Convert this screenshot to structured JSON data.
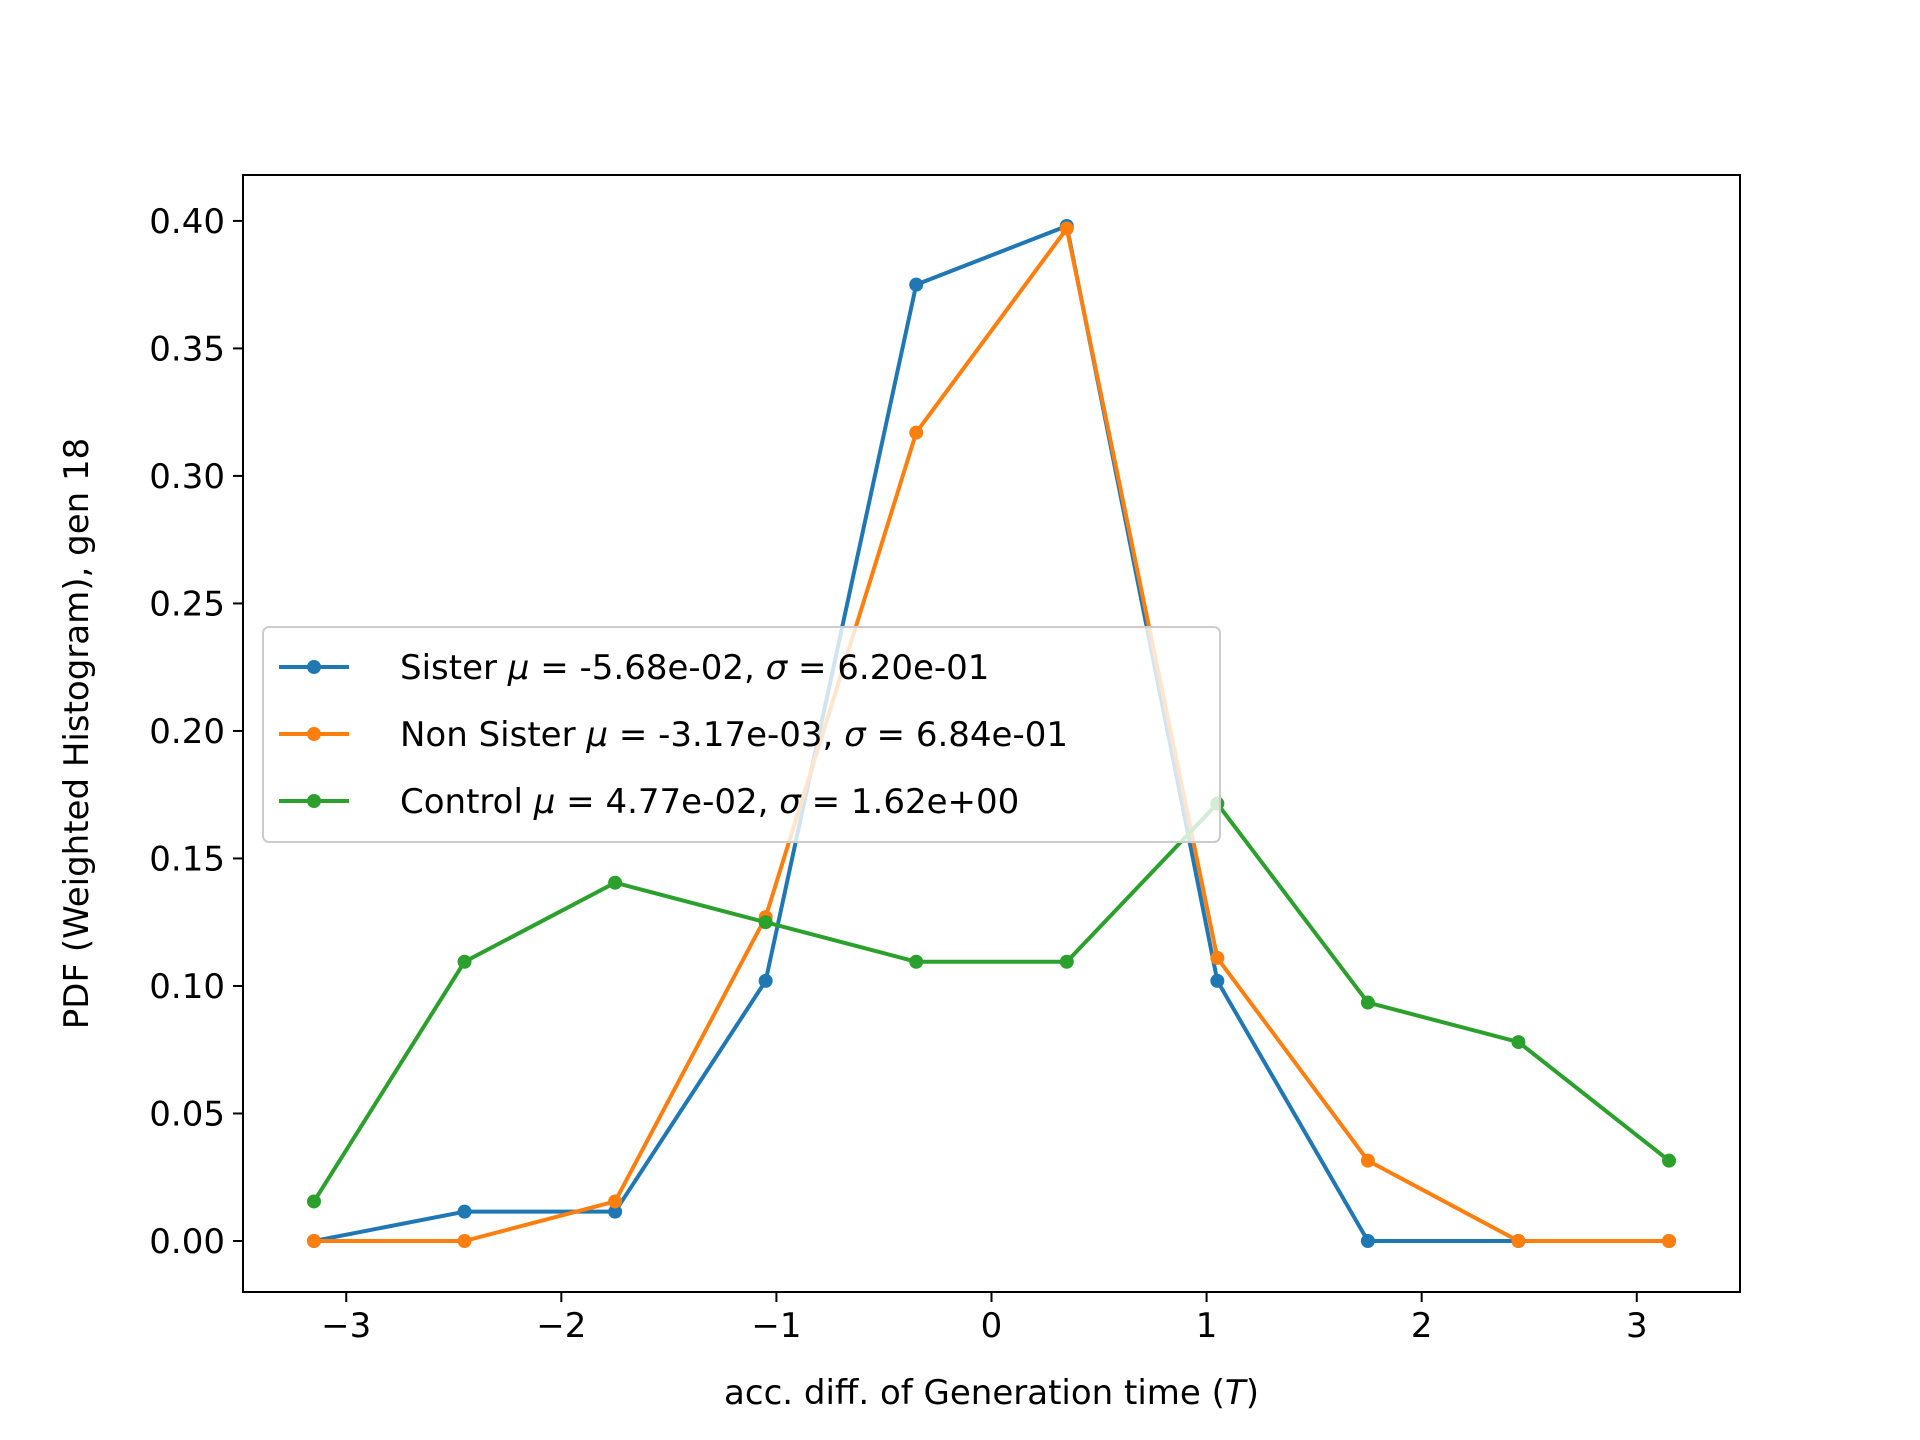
{
  "chart_data": {
    "type": "line",
    "xlabel_text": "acc. diff. of Generation time (",
    "xlabel_symbol": "T",
    "xlabel_close": ")",
    "ylabel": "PDF (Weighted Histogram), gen 18",
    "xlim": [
      -3.48,
      3.48
    ],
    "ylim": [
      -0.02,
      0.418
    ],
    "x_ticks": [
      {
        "value": -3,
        "label": "−3"
      },
      {
        "value": -2,
        "label": "−2"
      },
      {
        "value": -1,
        "label": "−1"
      },
      {
        "value": 0,
        "label": "0"
      },
      {
        "value": 1,
        "label": "1"
      },
      {
        "value": 2,
        "label": "2"
      },
      {
        "value": 3,
        "label": "3"
      }
    ],
    "y_ticks": [
      {
        "value": 0.0,
        "label": "0.00"
      },
      {
        "value": 0.05,
        "label": "0.05"
      },
      {
        "value": 0.1,
        "label": "0.10"
      },
      {
        "value": 0.15,
        "label": "0.15"
      },
      {
        "value": 0.2,
        "label": "0.20"
      },
      {
        "value": 0.25,
        "label": "0.25"
      },
      {
        "value": 0.3,
        "label": "0.30"
      },
      {
        "value": 0.35,
        "label": "0.35"
      },
      {
        "value": 0.4,
        "label": "0.40"
      }
    ],
    "x": [
      -3.15,
      -2.45,
      -1.75,
      -1.05,
      -0.35,
      0.35,
      1.05,
      1.75,
      2.45,
      3.15
    ],
    "legend_position": "center-left",
    "grid": false,
    "series": [
      {
        "name": "Sister",
        "mu": "-5.68e-02",
        "sigma": "6.20e-01",
        "color": "#1f77b4",
        "values": [
          0.0,
          0.0115,
          0.0115,
          0.102,
          0.375,
          0.398,
          0.102,
          0.0,
          0.0,
          0.0
        ]
      },
      {
        "name": "Non Sister",
        "mu": "-3.17e-03",
        "sigma": "6.84e-01",
        "color": "#ff7f0e",
        "values": [
          0.0,
          0.0,
          0.0155,
          0.127,
          0.317,
          0.397,
          0.111,
          0.0315,
          0.0,
          0.0
        ]
      },
      {
        "name": "Control",
        "mu": "4.77e-02",
        "sigma": "1.62e+00",
        "color": "#2ca02c",
        "values": [
          0.0155,
          0.1095,
          0.1405,
          0.125,
          0.1095,
          0.1095,
          0.1715,
          0.0935,
          0.078,
          0.0315
        ]
      }
    ]
  }
}
